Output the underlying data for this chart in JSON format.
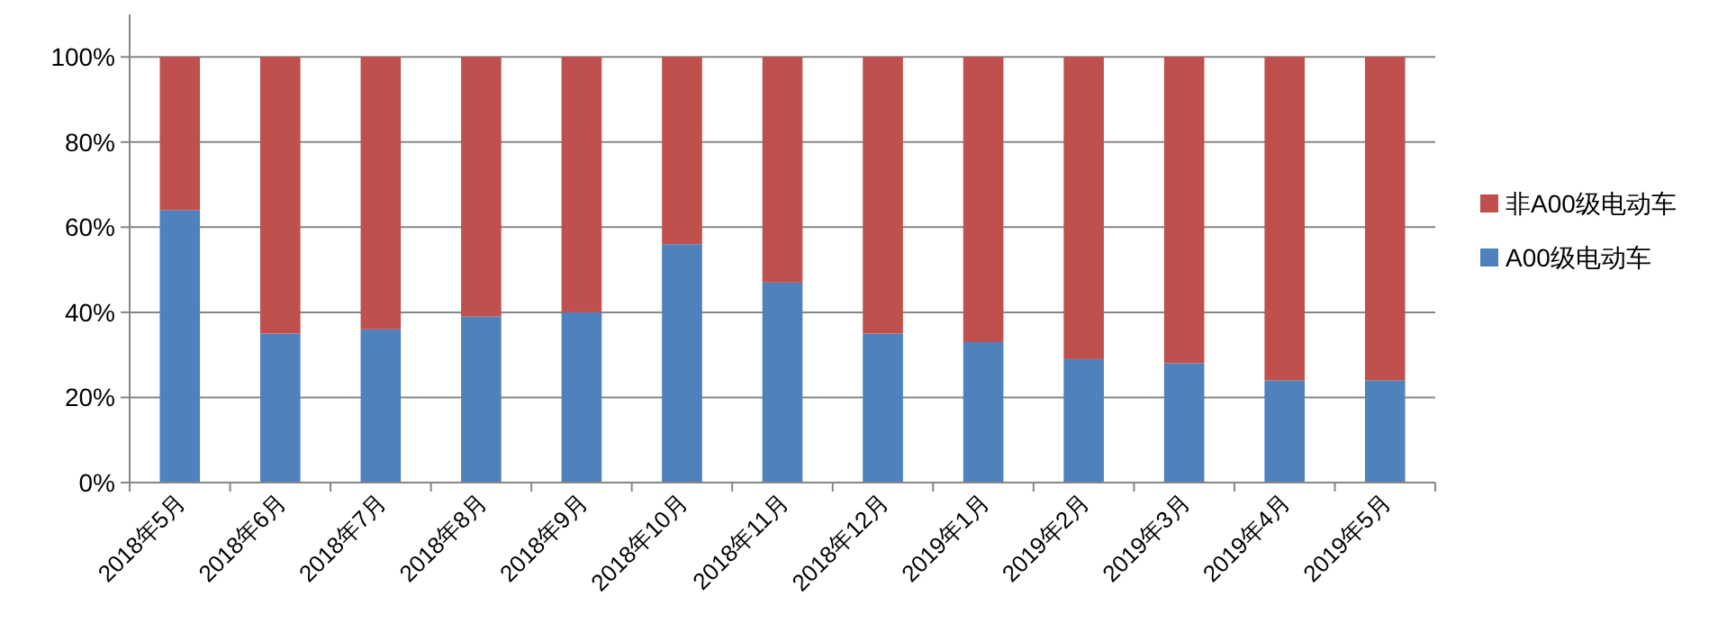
{
  "chart_data": {
    "type": "bar",
    "stacked": true,
    "categories": [
      "2018年5月",
      "2018年6月",
      "2018年7月",
      "2018年8月",
      "2018年9月",
      "2018年10月",
      "2018年11月",
      "2018年12月",
      "2019年1月",
      "2019年2月",
      "2019年3月",
      "2019年4月",
      "2019年5月"
    ],
    "series": [
      {
        "name": "A00级电动车",
        "color": "#4f81bd",
        "values": [
          64,
          35,
          36,
          39,
          40,
          56,
          47,
          35,
          33,
          29,
          28,
          24,
          24
        ]
      },
      {
        "name": "非A00级电动车",
        "color": "#c0504d",
        "values": [
          36,
          65,
          64,
          61,
          60,
          44,
          53,
          65,
          67,
          71,
          72,
          76,
          76
        ]
      }
    ],
    "ylim": [
      0,
      110
    ],
    "yticks": [
      {
        "value": 0,
        "label": "0%"
      },
      {
        "value": 20,
        "label": "20%"
      },
      {
        "value": 40,
        "label": "40%"
      },
      {
        "value": 60,
        "label": "60%"
      },
      {
        "value": 80,
        "label": "80%"
      },
      {
        "value": 100,
        "label": "100%"
      }
    ],
    "grid": "y",
    "legend": "right"
  }
}
